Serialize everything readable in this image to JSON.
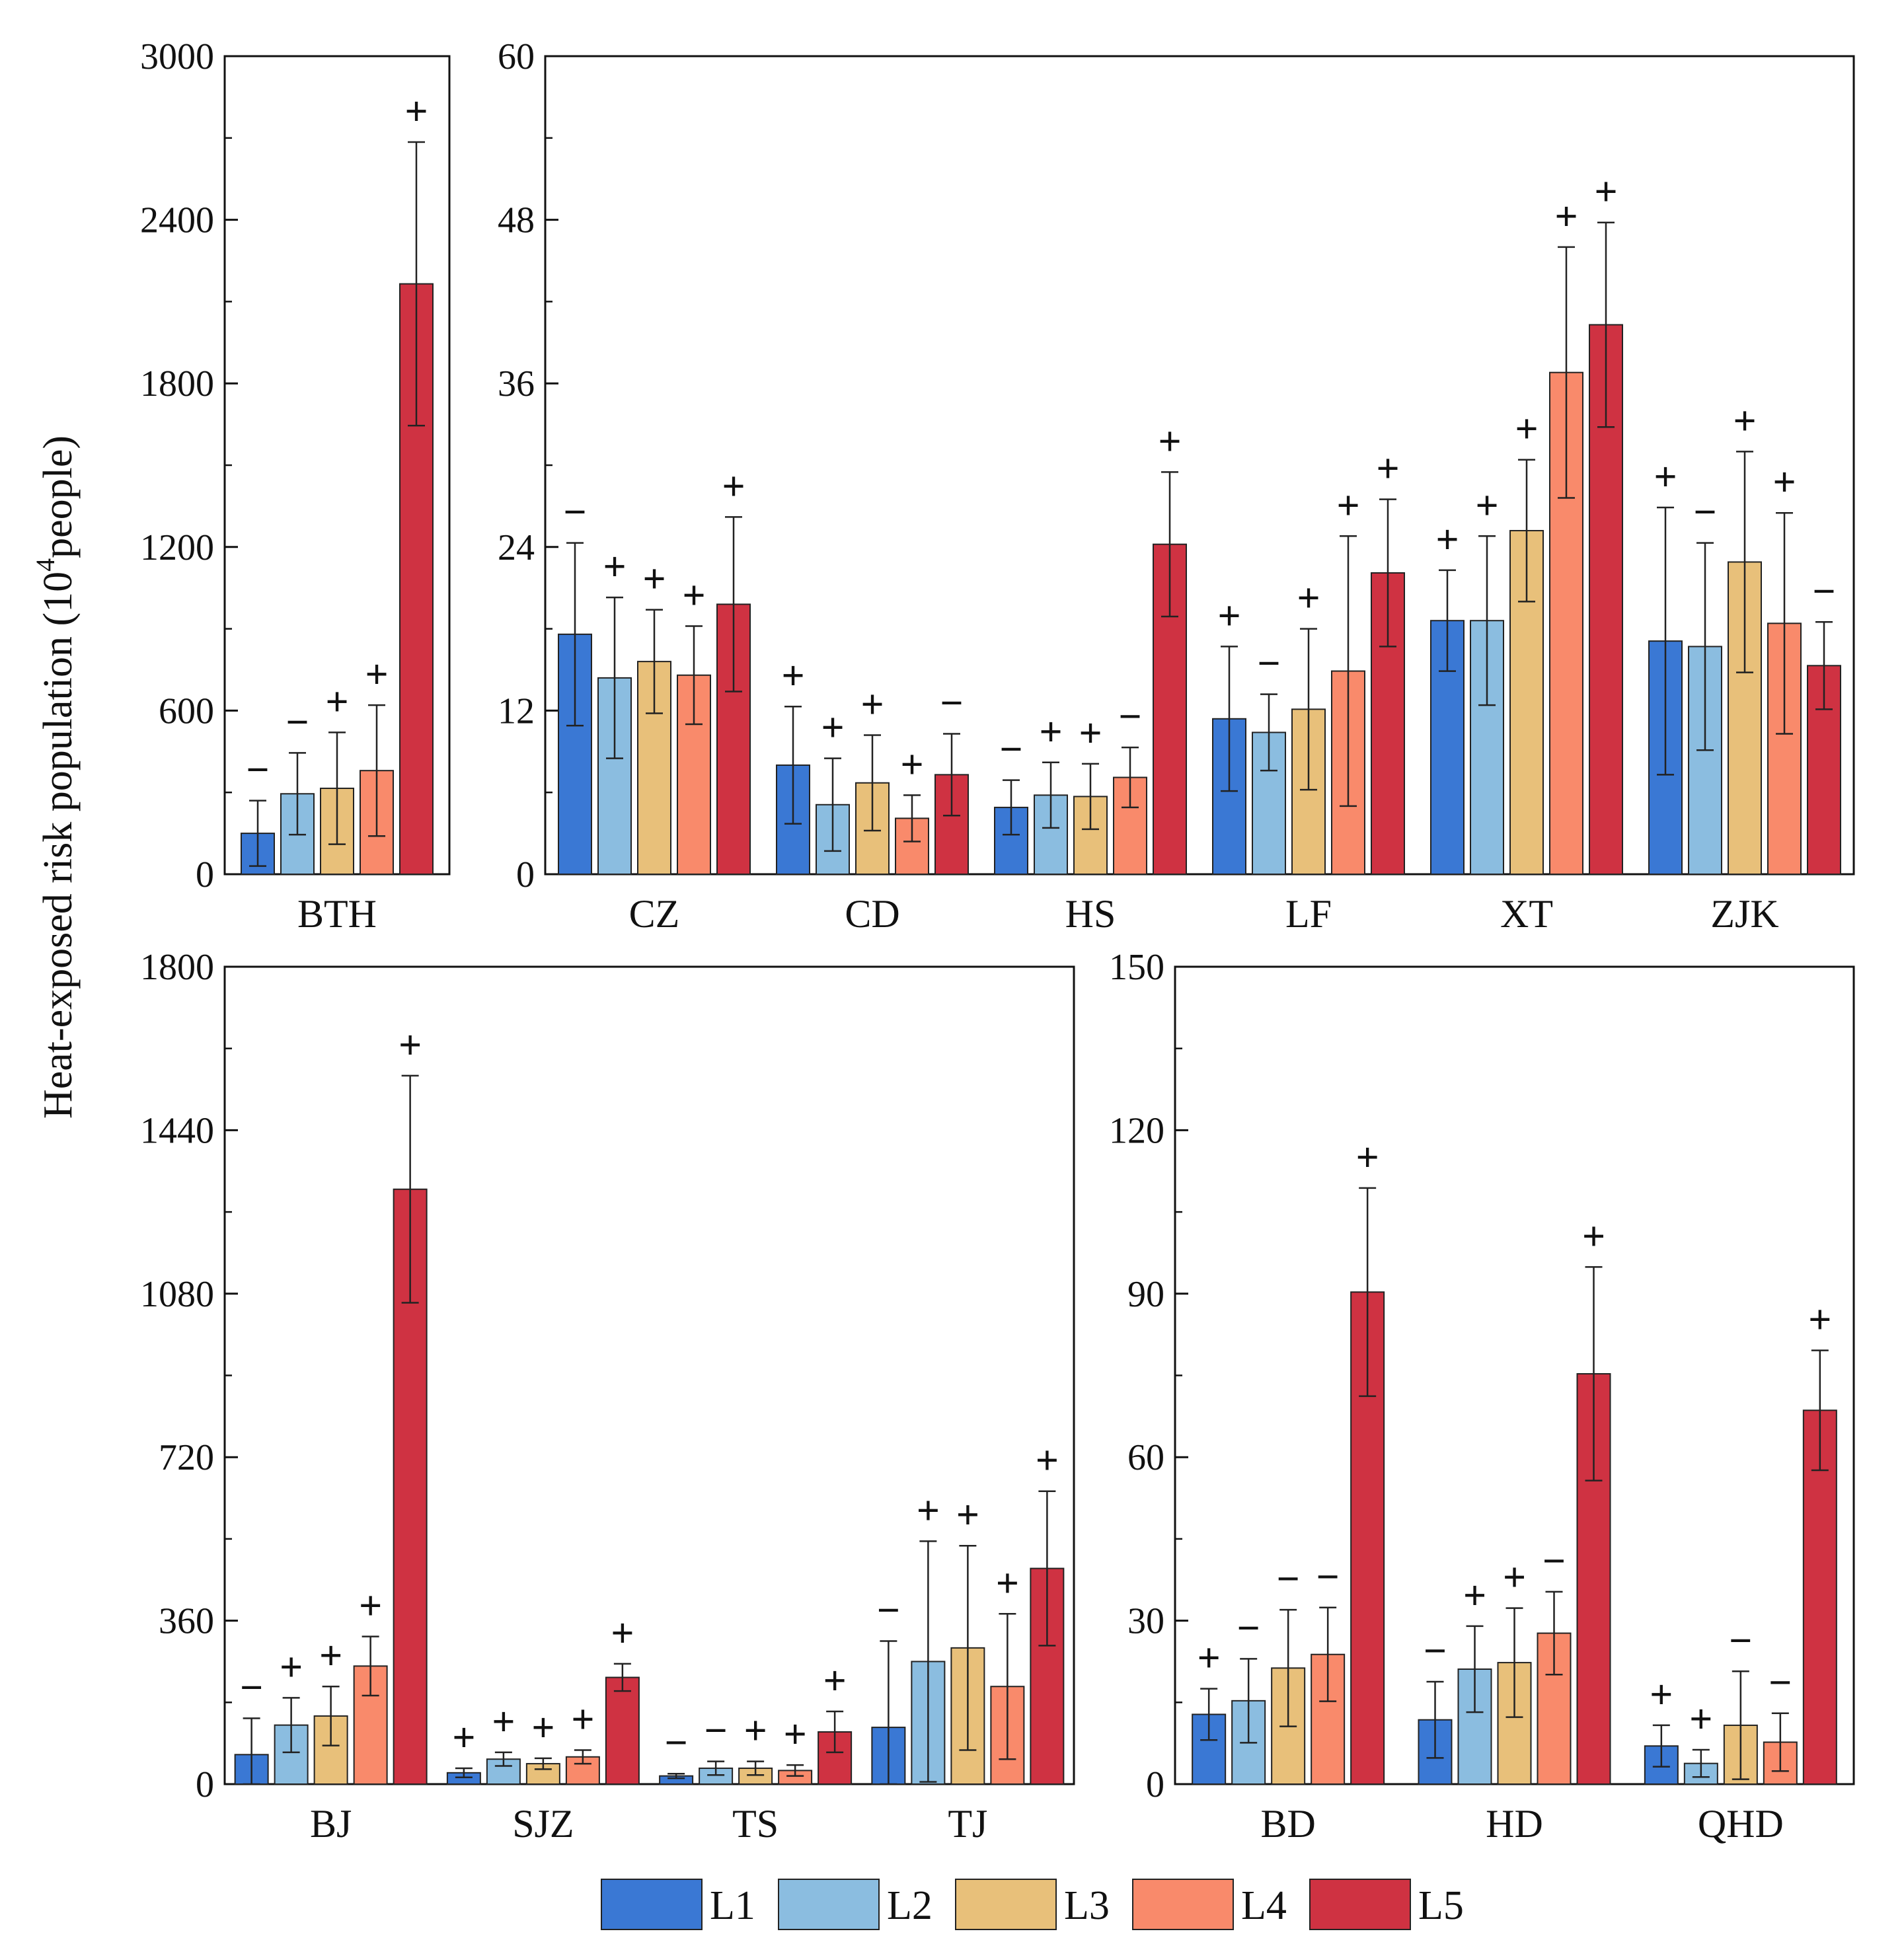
{
  "chart_data": {
    "type": "bar",
    "ylabel": {
      "pre": "Heat-exposed risk population (10",
      "sup": "4",
      "post": "people)"
    },
    "legend": [
      "L1",
      "L2",
      "L3",
      "L4",
      "L5"
    ],
    "colors": [
      "#3a78d4",
      "#8bbde0",
      "#e8c07a",
      "#f98a6b",
      "#cf3242"
    ],
    "panels": [
      {
        "ylim": [
          0,
          3000
        ],
        "yticks": [
          0,
          600,
          1200,
          1800,
          2400,
          3000
        ],
        "categories": [
          "BTH"
        ],
        "values": [
          [
            150,
            295,
            315,
            380,
            2165
          ]
        ],
        "errors": [
          [
            120,
            150,
            205,
            240,
            520
          ]
        ],
        "signs": [
          [
            "−",
            "−",
            "+",
            "+",
            "+"
          ]
        ]
      },
      {
        "ylim": [
          0,
          60
        ],
        "yticks": [
          0,
          12,
          24,
          36,
          48,
          60
        ],
        "categories": [
          "CZ",
          "CD",
          "HS",
          "LF",
          "XT",
          "ZJK"
        ],
        "values": [
          [
            17.6,
            14.4,
            15.6,
            14.6,
            19.8
          ],
          [
            8.0,
            5.1,
            6.7,
            4.1,
            7.3
          ],
          [
            4.9,
            5.8,
            5.7,
            7.1,
            24.2
          ],
          [
            11.4,
            10.4,
            12.1,
            14.9,
            22.1
          ],
          [
            18.6,
            18.6,
            25.2,
            36.8,
            40.3
          ],
          [
            17.1,
            16.7,
            22.9,
            18.4,
            15.3
          ]
        ],
        "errors": [
          [
            6.7,
            5.9,
            3.8,
            3.6,
            6.4
          ],
          [
            4.3,
            3.4,
            3.5,
            1.7,
            3.0
          ],
          [
            2.0,
            2.4,
            2.4,
            2.2,
            5.3
          ],
          [
            5.3,
            2.8,
            5.9,
            9.9,
            5.4
          ],
          [
            3.7,
            6.2,
            5.2,
            9.2,
            7.5
          ],
          [
            9.8,
            7.6,
            8.1,
            8.1,
            3.2
          ]
        ],
        "signs": [
          [
            "−",
            "+",
            "+",
            "+",
            "+"
          ],
          [
            "+",
            "+",
            "+",
            "+",
            "−"
          ],
          [
            "−",
            "+",
            "+",
            "−",
            "+"
          ],
          [
            "+",
            "−",
            "+",
            "+",
            "+"
          ],
          [
            "+",
            "+",
            "+",
            "+",
            "+"
          ],
          [
            "+",
            "−",
            "+",
            "+",
            "−"
          ]
        ]
      },
      {
        "ylim": [
          0,
          1800
        ],
        "yticks": [
          0,
          360,
          720,
          1080,
          1440,
          1800
        ],
        "categories": [
          "BJ",
          "SJZ",
          "TS",
          "TJ"
        ],
        "values": [
          [
            65,
            130,
            150,
            260,
            1310
          ],
          [
            25,
            55,
            45,
            60,
            235
          ],
          [
            18,
            35,
            35,
            30,
            115
          ],
          [
            125,
            270,
            300,
            215,
            475
          ]
        ],
        "errors": [
          [
            80,
            60,
            65,
            65,
            250
          ],
          [
            10,
            15,
            12,
            15,
            30
          ],
          [
            5,
            15,
            15,
            12,
            45
          ],
          [
            190,
            265,
            225,
            160,
            170
          ]
        ],
        "signs": [
          [
            "−",
            "+",
            "+",
            "+",
            "+"
          ],
          [
            "+",
            "+",
            "+",
            "+",
            "+"
          ],
          [
            "−",
            "−",
            "+",
            "+",
            "+"
          ],
          [
            "−",
            "+",
            "+",
            "+",
            "+"
          ]
        ]
      },
      {
        "ylim": [
          0,
          150
        ],
        "yticks": [
          0,
          30,
          60,
          90,
          120,
          150
        ],
        "categories": [
          "BD",
          "HD",
          "QHD"
        ],
        "values": [
          [
            12.8,
            15.3,
            21.3,
            23.8,
            90.3
          ],
          [
            11.8,
            21.1,
            22.3,
            27.7,
            75.3
          ],
          [
            7.0,
            3.8,
            10.8,
            7.7,
            68.6
          ]
        ],
        "errors": [
          [
            4.7,
            7.7,
            10.7,
            8.6,
            19.1
          ],
          [
            7.0,
            7.9,
            10.0,
            7.6,
            19.6
          ],
          [
            3.8,
            2.5,
            9.9,
            5.3,
            11.0
          ]
        ],
        "signs": [
          [
            "+",
            "−",
            "−",
            "−",
            "+"
          ],
          [
            "−",
            "+",
            "+",
            "−",
            "+"
          ],
          [
            "+",
            "+",
            "−",
            "−",
            "+"
          ]
        ]
      }
    ]
  }
}
